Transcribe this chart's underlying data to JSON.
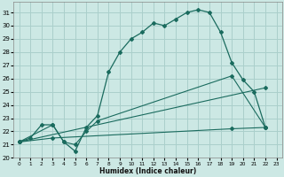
{
  "xlabel": "Humidex (Indice chaleur)",
  "bg_color": "#cce8e4",
  "grid_color": "#aacfcb",
  "line_color": "#1a6b5e",
  "xlim": [
    -0.5,
    23.5
  ],
  "ylim": [
    20.0,
    31.8
  ],
  "yticks": [
    20,
    21,
    22,
    23,
    24,
    25,
    26,
    27,
    28,
    29,
    30,
    31
  ],
  "xticks": [
    0,
    1,
    2,
    3,
    4,
    5,
    6,
    7,
    8,
    9,
    10,
    11,
    12,
    13,
    14,
    15,
    16,
    17,
    18,
    19,
    20,
    21,
    22,
    23
  ],
  "curve1_x": [
    0,
    1,
    2,
    3,
    4,
    5,
    6,
    7,
    8,
    9,
    10,
    11,
    12,
    13,
    14,
    15,
    16,
    17,
    18,
    19,
    20,
    21,
    22
  ],
  "curve1_y": [
    21.2,
    21.5,
    22.5,
    22.5,
    21.2,
    20.5,
    22.3,
    23.2,
    26.5,
    28.0,
    29.0,
    29.5,
    30.2,
    30.0,
    30.5,
    31.0,
    31.2,
    31.0,
    29.5,
    27.2,
    25.9,
    25.0,
    22.3
  ],
  "curve2_x": [
    0,
    3,
    4,
    5,
    6,
    7,
    19,
    22
  ],
  "curve2_y": [
    21.2,
    22.5,
    21.2,
    21.0,
    22.0,
    22.8,
    26.2,
    22.3
  ],
  "curve3_x": [
    0,
    22
  ],
  "curve3_y": [
    21.2,
    25.3
  ],
  "curve4_x": [
    0,
    3,
    19,
    22
  ],
  "curve4_y": [
    21.2,
    21.5,
    22.2,
    22.3
  ]
}
